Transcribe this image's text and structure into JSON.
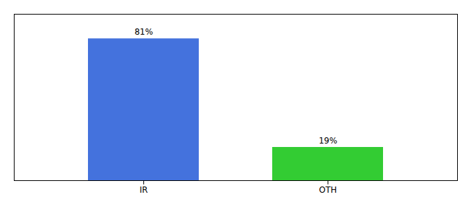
{
  "chart_data": {
    "type": "bar",
    "categories": [
      "IR",
      "OTH"
    ],
    "values": [
      81,
      19
    ],
    "value_labels": [
      "81%",
      "19%"
    ],
    "colors": [
      "#4472dd",
      "#33cc33"
    ],
    "ylim": [
      0,
      95
    ],
    "data_labels": true,
    "tick_labels": "x",
    "grid": false
  }
}
